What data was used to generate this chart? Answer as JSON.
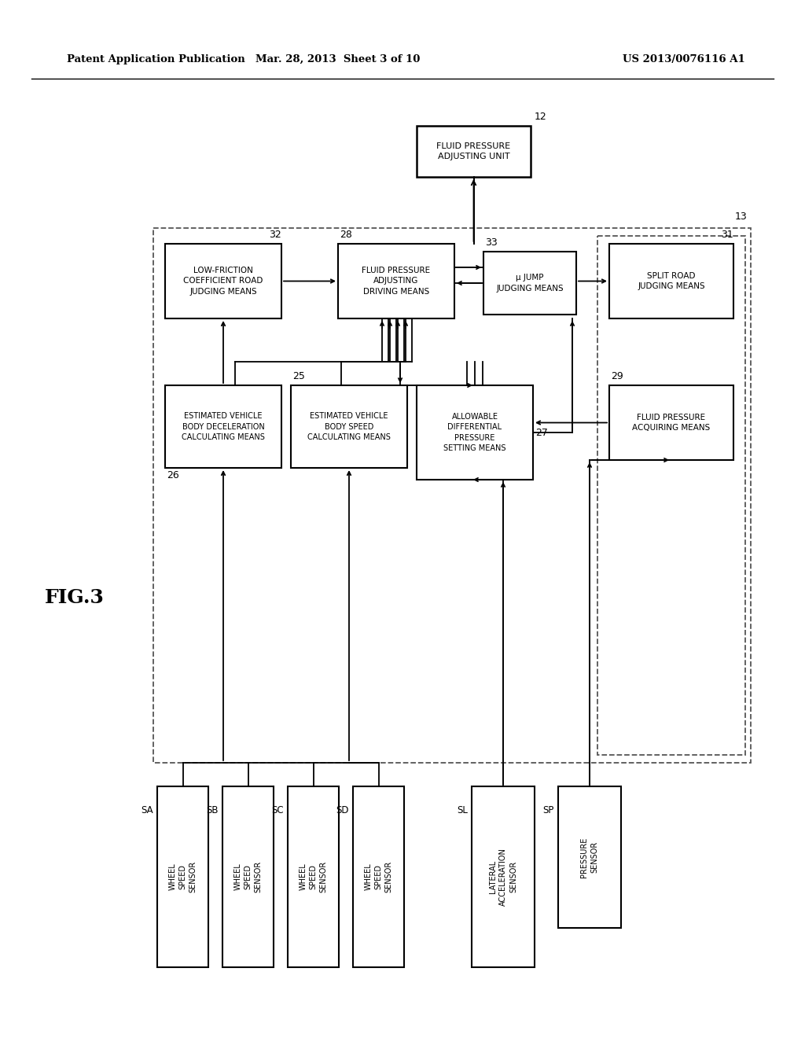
{
  "title_left": "Patent Application Publication",
  "title_center": "Mar. 28, 2013  Sheet 3 of 10",
  "title_right": "US 2013/0076116 A1",
  "fig_label": "FIG.3",
  "bg_color": "#ffffff"
}
